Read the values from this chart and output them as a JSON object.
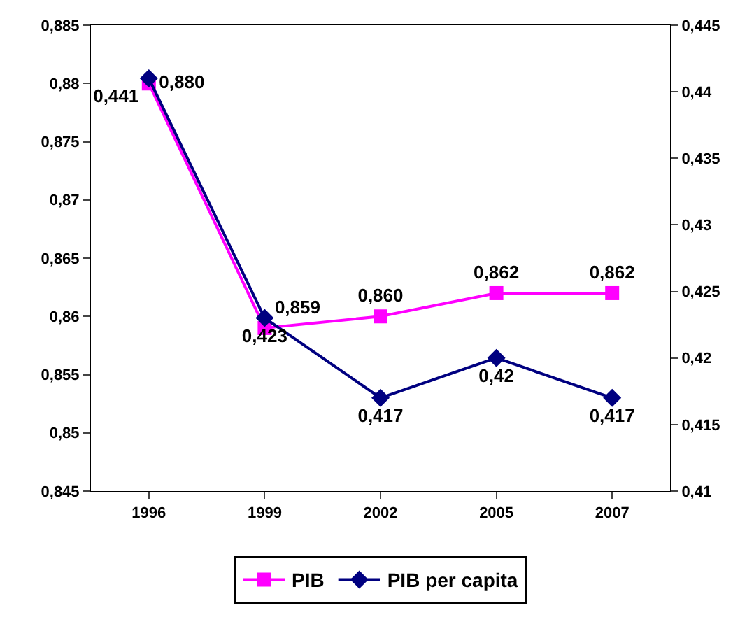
{
  "chart_data": {
    "type": "line",
    "categories": [
      "1996",
      "1999",
      "2002",
      "2005",
      "2007"
    ],
    "series": [
      {
        "name": "PIB",
        "color": "#ff00ff",
        "marker": "square",
        "values": [
          0.88,
          0.859,
          0.86,
          0.862,
          0.862
        ],
        "value_labels": [
          "0,880",
          "0,859",
          "0,860",
          "0,862",
          "0,862"
        ]
      },
      {
        "name": "PIB per capita",
        "color": "#000080",
        "marker": "diamond",
        "axis": "y2",
        "values": [
          0.441,
          0.423,
          0.417,
          0.42,
          0.417
        ],
        "value_labels": [
          "0,441",
          "0,423",
          "0,417",
          "0,42",
          "0,417"
        ]
      }
    ],
    "ylim": [
      0.845,
      0.885
    ],
    "yticks": [
      {
        "value": 0.845,
        "label": "0,845"
      },
      {
        "value": 0.85,
        "label": "0,85"
      },
      {
        "value": 0.855,
        "label": "0,855"
      },
      {
        "value": 0.86,
        "label": "0,86"
      },
      {
        "value": 0.865,
        "label": "0,865"
      },
      {
        "value": 0.87,
        "label": "0,87"
      },
      {
        "value": 0.875,
        "label": "0,875"
      },
      {
        "value": 0.88,
        "label": "0,88"
      },
      {
        "value": 0.885,
        "label": "0,885"
      }
    ],
    "y2lim": [
      0.41,
      0.445
    ],
    "y2ticks": [
      {
        "value": 0.41,
        "label": "0,41"
      },
      {
        "value": 0.415,
        "label": "0,415"
      },
      {
        "value": 0.42,
        "label": "0,42"
      },
      {
        "value": 0.425,
        "label": "0,425"
      },
      {
        "value": 0.43,
        "label": "0,43"
      },
      {
        "value": 0.435,
        "label": "0,435"
      },
      {
        "value": 0.44,
        "label": "0,44"
      },
      {
        "value": 0.445,
        "label": "0,445"
      }
    ],
    "grid": false,
    "legend": "bottom",
    "line_style": "solid"
  }
}
